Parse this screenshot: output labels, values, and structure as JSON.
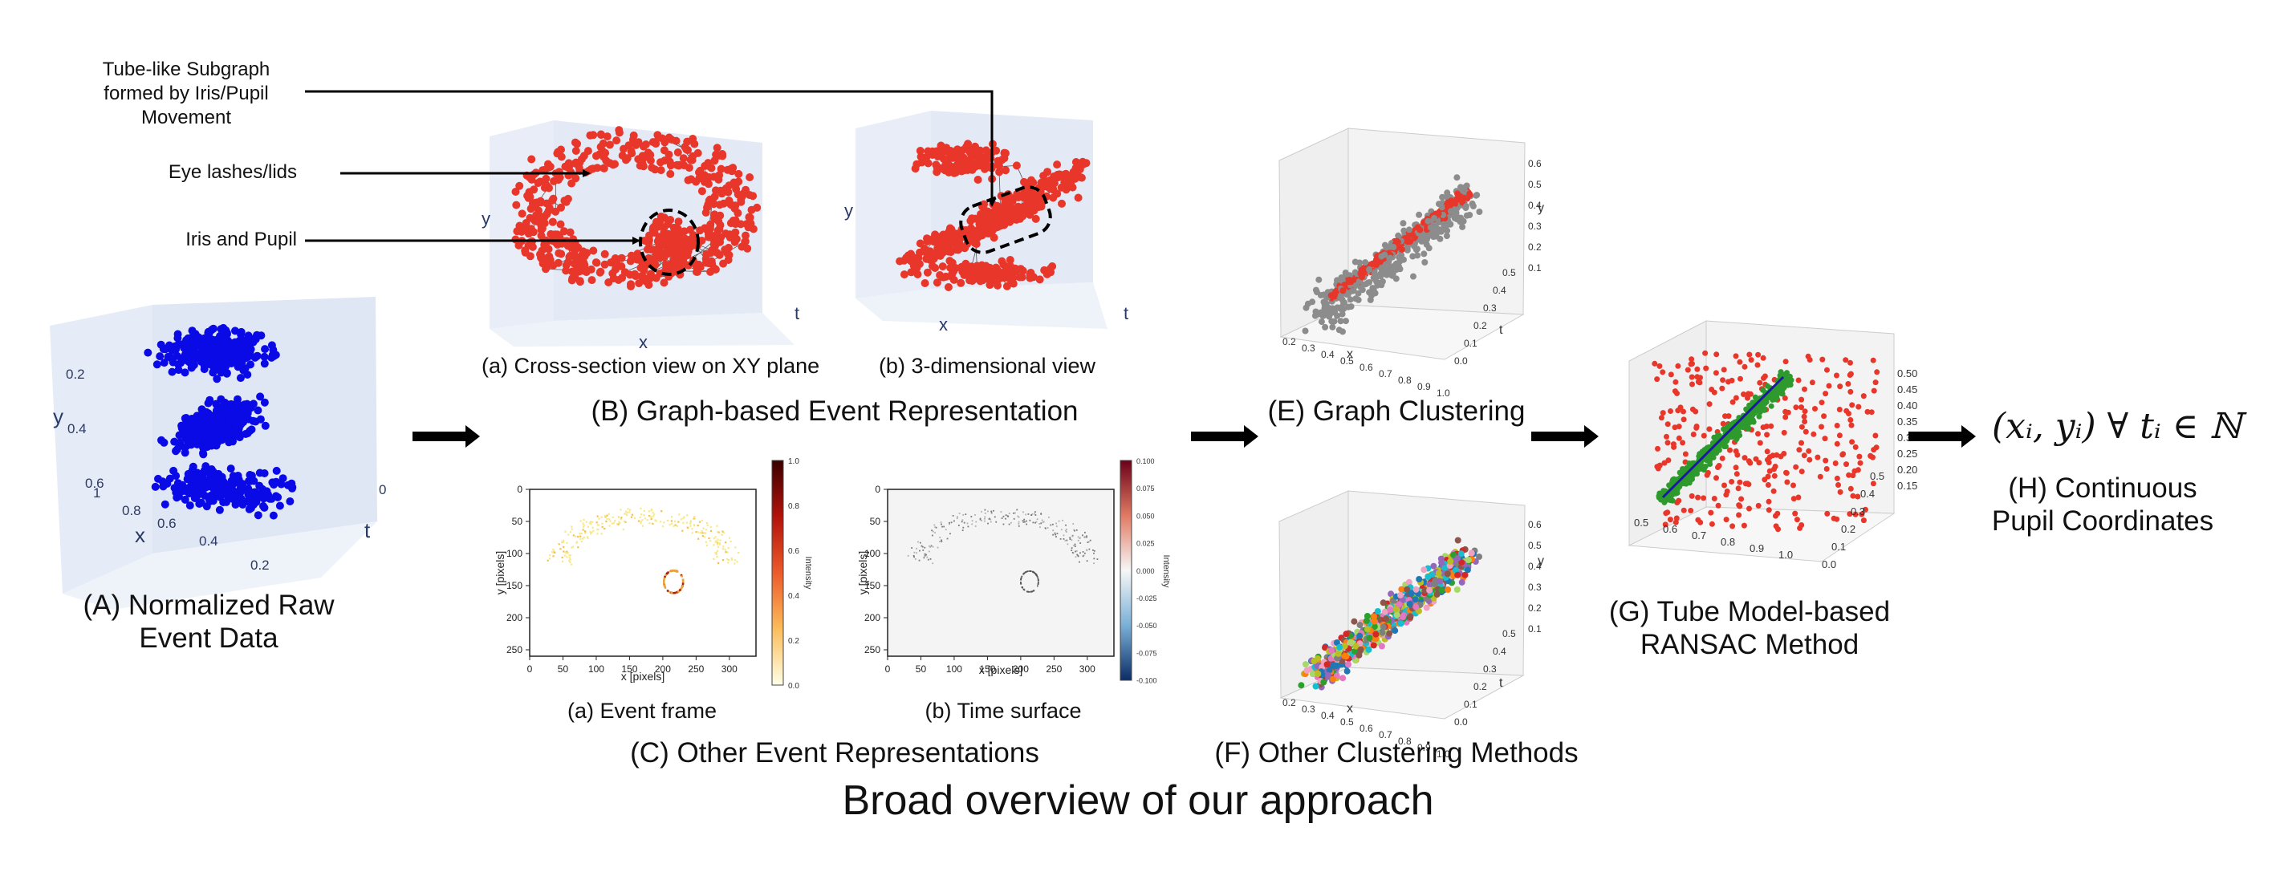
{
  "title": "Broad overview of our approach",
  "panels": {
    "A": {
      "label": "(A) Normalized Raw",
      "label2": "Event Data",
      "axis_y": "y",
      "axis_x": "x",
      "axis_t": "t",
      "ticks_y": [
        "0.2",
        "0.4",
        "0.6"
      ],
      "ticks_x": [
        "1",
        "0.8",
        "0.6",
        "0.4",
        "0.2"
      ],
      "ticks_t": [
        "0"
      ],
      "color": "#0a0ae6"
    },
    "B": {
      "label": "(B) Graph-based Event Representation",
      "sub_a": "(a) Cross-section view on XY plane",
      "sub_b": "(b) 3-dimensional view",
      "axis_y": "y",
      "axis_x": "x",
      "axis_t": "t",
      "color": "#e8362a"
    },
    "C": {
      "label": "(C) Other Event Representations",
      "sub_a": "(a) Event frame",
      "sub_b": "(b) Time surface",
      "xlabel": "x [pixels]",
      "ylabel": "y [pixels]",
      "cbar_label": "Intensity",
      "x_ticks": [
        "0",
        "50",
        "100",
        "150",
        "200",
        "250",
        "300"
      ],
      "y_ticks": [
        "0",
        "50",
        "100",
        "150",
        "200",
        "250"
      ],
      "cbar_a_ticks": [
        "1.0",
        "0.8",
        "0.6",
        "0.4",
        "0.2",
        "0.0"
      ],
      "cbar_b_ticks": [
        "0.100",
        "0.075",
        "0.050",
        "0.025",
        "0.000",
        "-0.025",
        "-0.050",
        "-0.075",
        "-0.100"
      ]
    },
    "E": {
      "label": "(E) Graph Clustering",
      "axis_x": "x",
      "axis_y": "y",
      "axis_t": "t",
      "ticks_x": [
        "0.2",
        "0.3",
        "0.4",
        "0.5",
        "0.6",
        "0.7",
        "0.8",
        "0.9",
        "1.0"
      ],
      "ticks_t": [
        "0.0",
        "0.1",
        "0.2",
        "0.3",
        "0.4",
        "0.5"
      ],
      "ticks_y": [
        "0.6",
        "0.5",
        "0.4",
        "0.3",
        "0.2",
        "0.1"
      ]
    },
    "F": {
      "label": "(F) Other Clustering Methods"
    },
    "G": {
      "label": "(G) Tube Model-based",
      "label2": "RANSAC Method",
      "ticks_x": [
        "0.5",
        "0.6",
        "0.7",
        "0.8",
        "0.9",
        "1.0"
      ],
      "ticks_y": [
        "0.50",
        "0.45",
        "0.40",
        "0.35",
        "0.30",
        "0.25",
        "0.20",
        "0.15"
      ],
      "ticks_t": [
        "0.0",
        "0.1",
        "0.2",
        "0.3",
        "0.4",
        "0.5"
      ]
    },
    "H": {
      "label": "(H) Continuous",
      "label2": "Pupil Coordinates",
      "math": "(xᵢ, yᵢ) ∀ tᵢ ∈ ℕ"
    }
  },
  "annotations": {
    "tube": [
      "Tube-like Subgraph",
      "formed by Iris/Pupil",
      "Movement"
    ],
    "lashes": "Eye lashes/lids",
    "iris": "Iris and Pupil"
  },
  "colors": {
    "raw": "#0a0ae6",
    "graph": "#e8362a",
    "noise": "#8c8c8c",
    "inlier": "#2e9a2e",
    "fit_line": "#1a1aa0"
  }
}
